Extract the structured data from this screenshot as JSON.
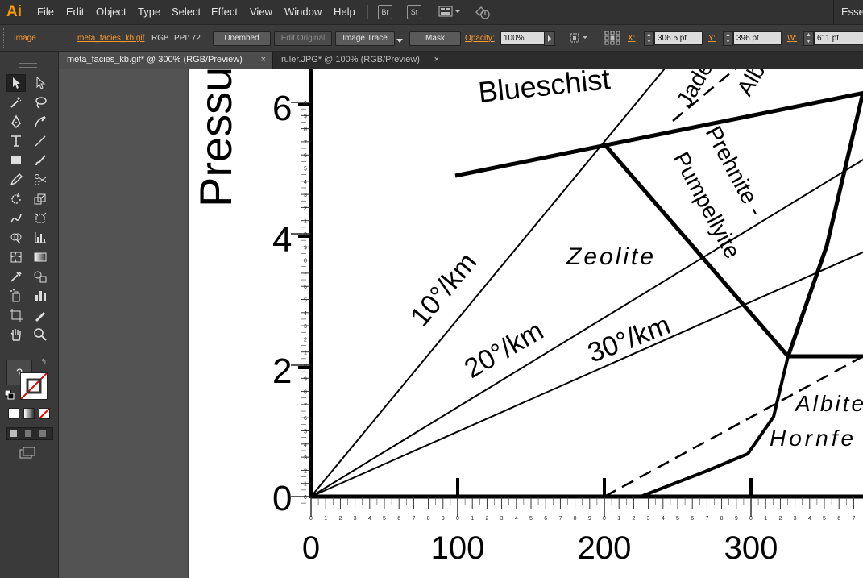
{
  "app": {
    "logo": "Ai",
    "workspace": "Esser"
  },
  "menu": [
    "File",
    "Edit",
    "Object",
    "Type",
    "Select",
    "Effect",
    "View",
    "Window",
    "Help"
  ],
  "bridge": {
    "br": "Br",
    "st": "St"
  },
  "control": {
    "object_type": "Image",
    "filename": "meta_facies_kb.gif",
    "color_mode": "RGB",
    "ppi": "PPI: 72",
    "unembed": "Unembed",
    "edit_original": "Edit Original",
    "image_trace": "Image Trace",
    "mask": "Mask",
    "opacity_label": "Opacity:",
    "opacity_value": "100%",
    "x_label": "X:",
    "x_value": "306.5 pt",
    "y_label": "Y:",
    "y_value": "396 pt",
    "w_label": "W:",
    "w_value": "611 pt"
  },
  "tabs": [
    {
      "label": "meta_facies_kb.gif* @ 300% (RGB/Preview)",
      "close": "×",
      "active": true
    },
    {
      "label": "ruler.JPG* @ 100% (RGB/Preview)",
      "close": "×",
      "active": false
    }
  ],
  "toolbar": {
    "help_glyph": "?"
  },
  "figure": {
    "y_axis_title": "Pressu",
    "y_ticks": [
      "6",
      "4",
      "2",
      "0"
    ],
    "x_ticks": [
      "0",
      "100",
      "200",
      "300"
    ],
    "facies": [
      "Blueschist",
      "Jade",
      "Alb",
      "Prehnite -",
      "Pumpellyite",
      "Zeolite",
      "Albite",
      "Hornfe"
    ],
    "gradients": [
      "10°/km",
      "20°/km",
      "30°/km"
    ],
    "ruler_digits": [
      "1",
      "2",
      "3",
      "4",
      "5",
      "6",
      "7",
      "8",
      "9"
    ],
    "ruler_zero": "0"
  }
}
